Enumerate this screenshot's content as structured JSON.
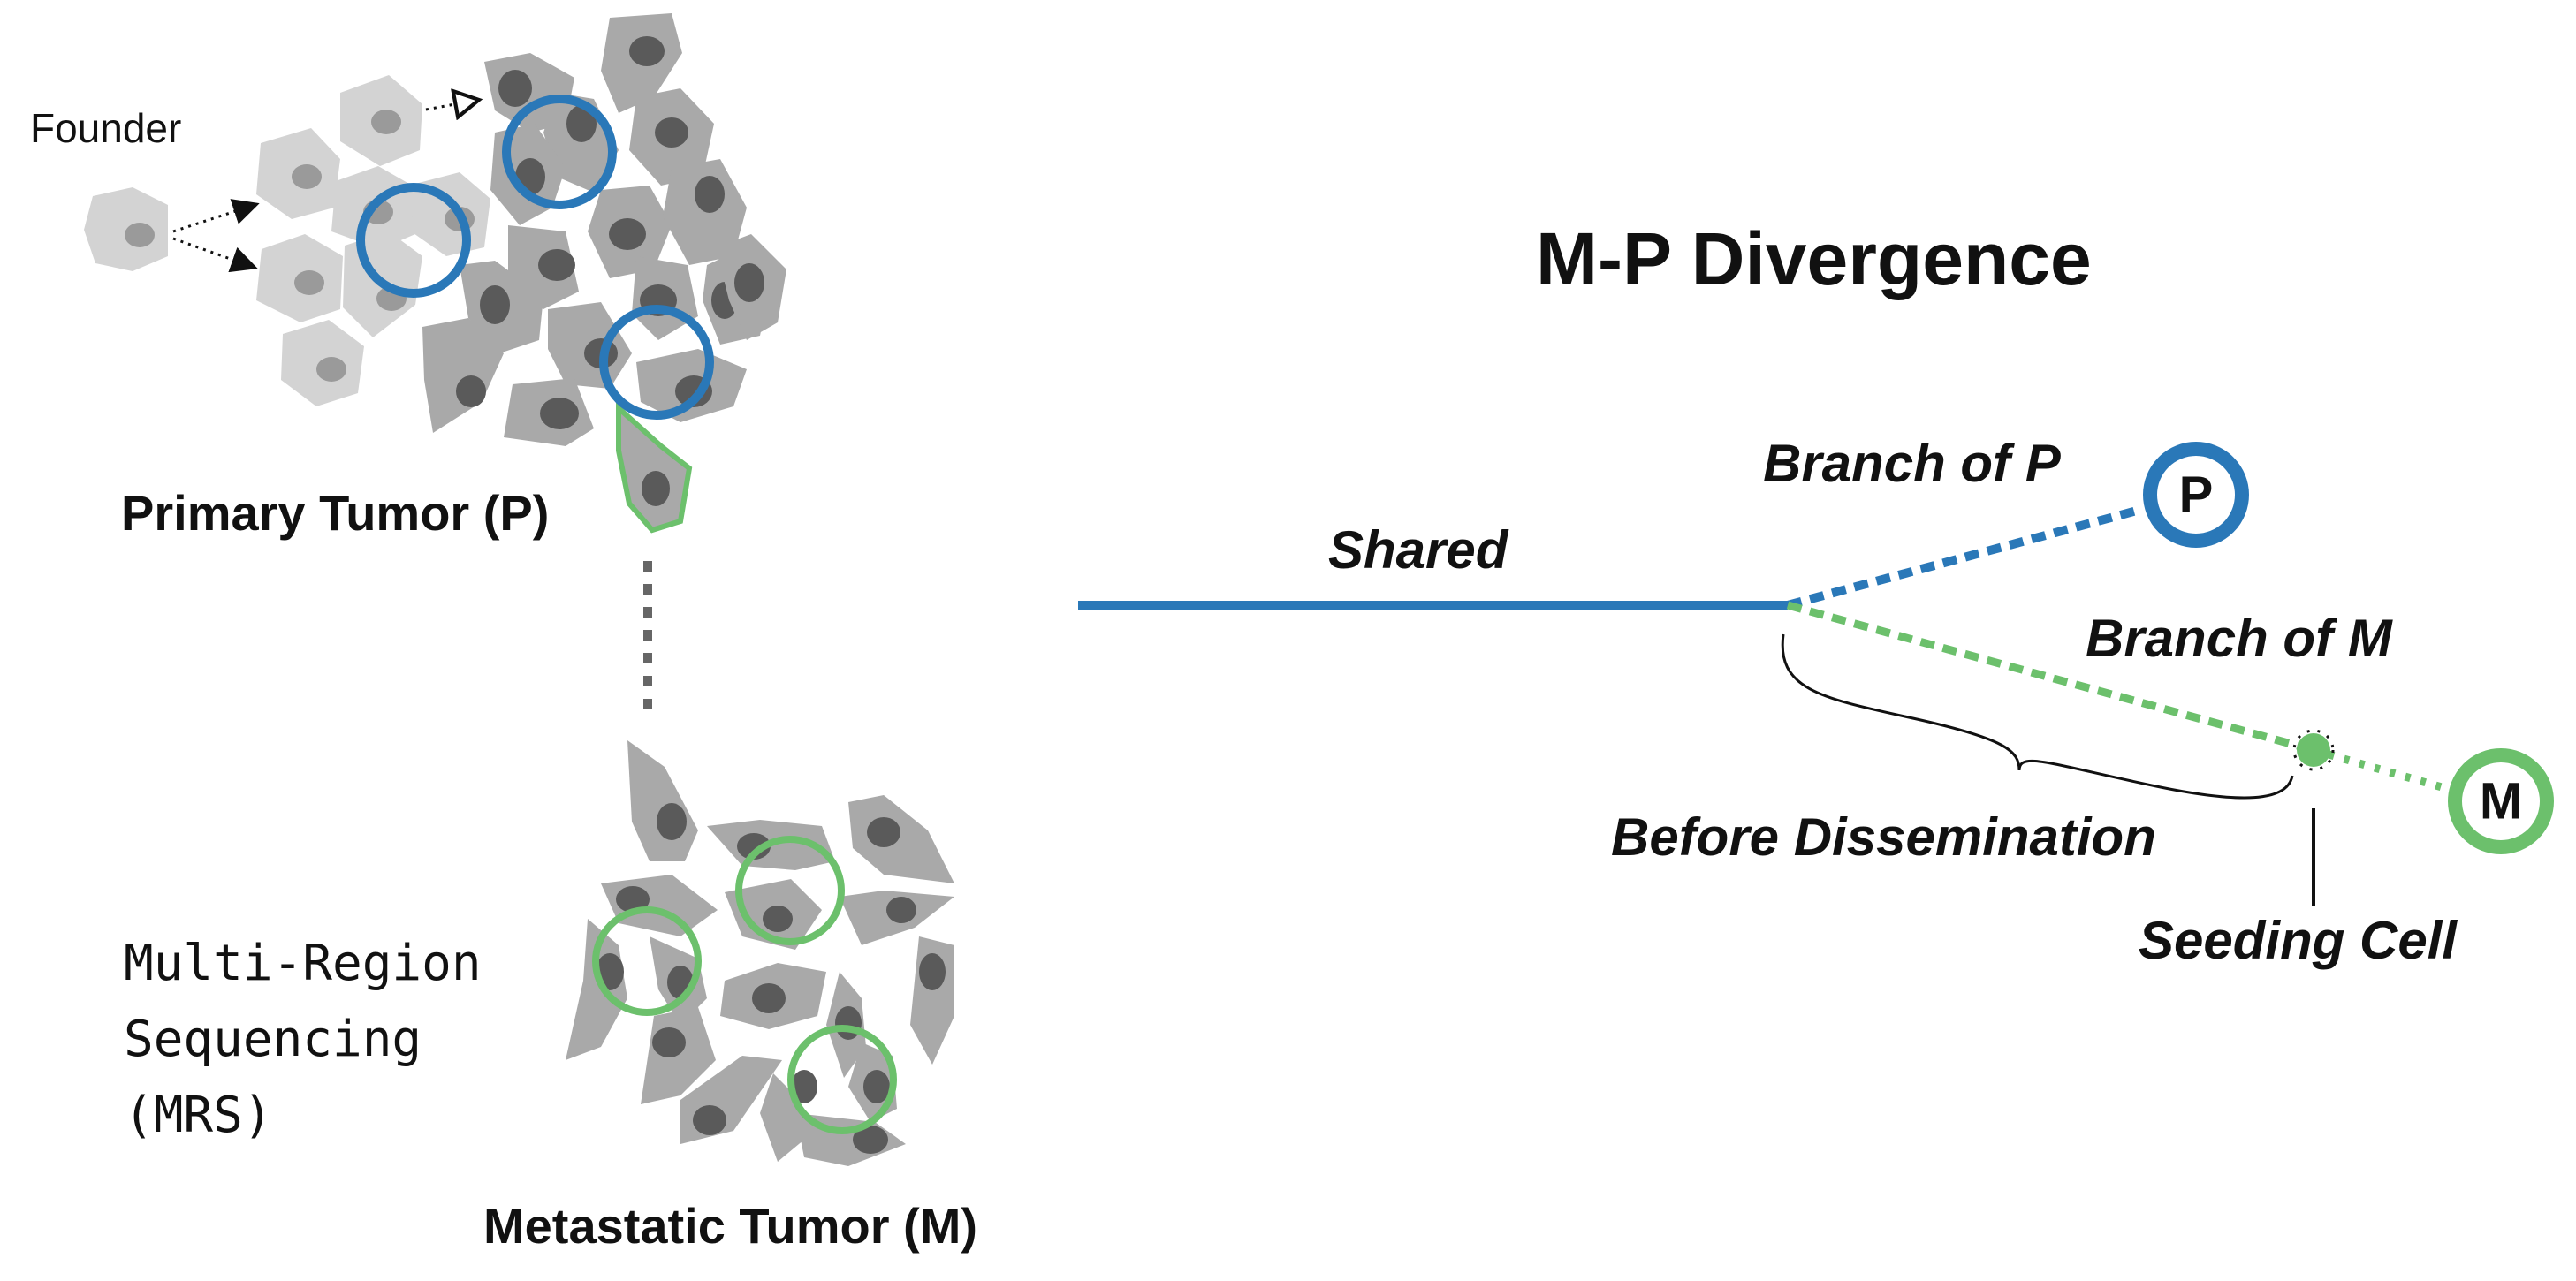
{
  "figure": {
    "title": "M-P Divergence",
    "left_panel": {
      "founder_label": "Founder",
      "primary_label": "Primary Tumor (P)",
      "metastatic_label": "Metastatic Tumor (M)",
      "mrs_label": "Multi-Region\nSequencing\n(MRS)"
    },
    "tree": {
      "shared_label": "Shared",
      "branch_p_label": "Branch of P",
      "branch_m_label": "Branch of M",
      "before_label": "Before Dissemination",
      "seeding_label": "Seeding Cell",
      "node_p": "P",
      "node_m": "M"
    }
  },
  "colors": {
    "blue": "#2a78b8",
    "green": "#6cc06c",
    "cell_dark": "#a9a9a9",
    "cell_light": "#d3d3d3",
    "nucleus_dark": "#5a5a5a",
    "nucleus_light": "#9a9a9a"
  }
}
